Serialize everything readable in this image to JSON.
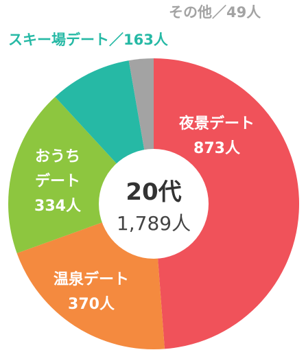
{
  "chart_data": {
    "type": "donut",
    "center_title": "20代",
    "total": 1789,
    "total_label": "1,789人",
    "categories": [
      "夜景デート",
      "温泉デート",
      "おうちデート",
      "スキー場デート",
      "その他"
    ],
    "values": [
      873,
      370,
      334,
      163,
      49
    ],
    "value_labels": [
      "873人",
      "370人",
      "334人",
      "163人",
      "49人"
    ],
    "colors": [
      "#f0525a",
      "#f48a3f",
      "#8dc63f",
      "#26b9a5",
      "#a3a3a3"
    ],
    "outside_separator": "／"
  }
}
